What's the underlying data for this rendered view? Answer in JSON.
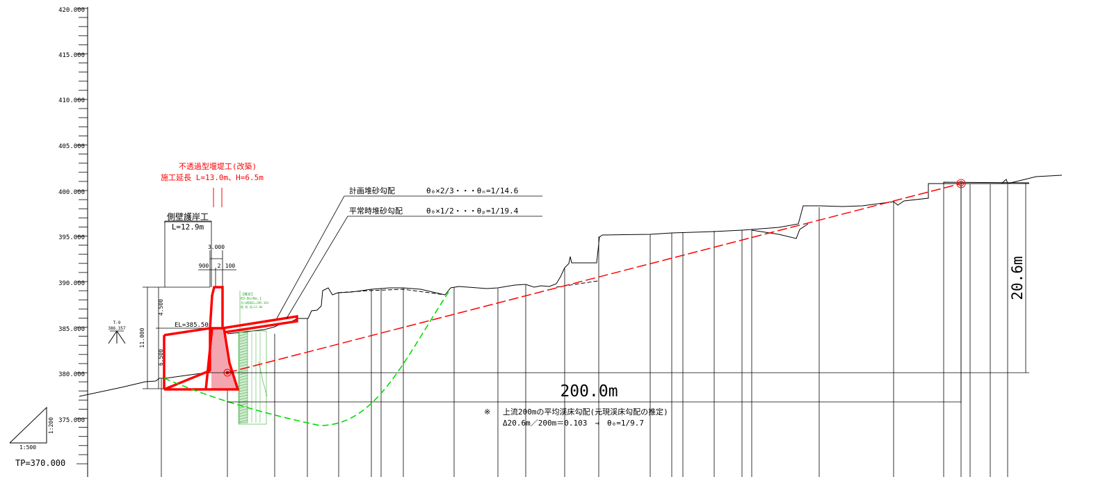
{
  "axis": {
    "labels": [
      "420.000",
      "415.000",
      "410.000",
      "405.000",
      "400.000",
      "395.000",
      "390.000",
      "385.000",
      "380.000",
      "375.000"
    ],
    "datum": "TP=370.000"
  },
  "scale": {
    "horizontal": "1:500",
    "vertical": "1:200"
  },
  "survey_point": {
    "name": "T-9",
    "elevation": "386.357"
  },
  "dam": {
    "title_line1": "不透過型堰堤工(改築)",
    "title_line2": "施工延長 L=13.0m、H=6.5m"
  },
  "side_wall": {
    "title": "側壁護岸工",
    "length": "L=12.9m"
  },
  "dims": {
    "top_width": "3.000",
    "left_part": "900",
    "middle_part": "2",
    "right_part": "100",
    "upper_height": "4.500",
    "lower_height": "6.500",
    "total_height": "11.000",
    "crest_el": "EL=385.50"
  },
  "gradients": {
    "planned_label": "計画堆砂勾配",
    "planned_formula": "θ₀×2/3・・・θₙ=1/14.6",
    "normal_label": "平常時堆砂勾配",
    "normal_formula": "θ₀×1/2・・・θₚ=1/19.4"
  },
  "boring": {
    "line1": "【推定】",
    "line2": "R3-BorNo.1",
    "line3": "孔口標高EL=385.164",
    "line4": "掘 削 長=12.0m"
  },
  "measure": {
    "horizontal": "200.0m",
    "vertical": "20.6m"
  },
  "note": {
    "mark": "※",
    "line1": "上流200mの平均渓床勾配(元現渓床勾配の推定)",
    "line2": "Δ20.6m／200m＝0.103　→　θ₀=1/9.7"
  },
  "colors": {
    "structure": "#ff0000",
    "slip_line": "#00dd00",
    "boring": "#33aa33",
    "ink": "#000000"
  }
}
